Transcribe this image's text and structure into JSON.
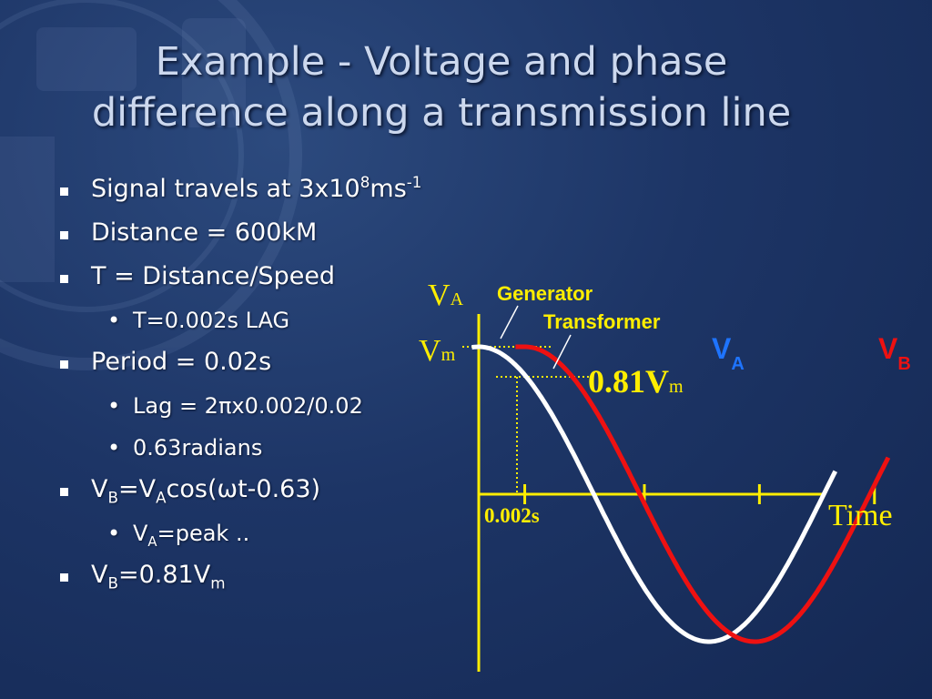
{
  "title": {
    "line1": "Example - Voltage  and  phase",
    "line2": "difference along a transmission line"
  },
  "bullets": {
    "signal": {
      "main": "Signal travels at 3x10",
      "sup1": "8",
      "mid": "ms",
      "sup2": "-1"
    },
    "distance": "Distance = 600kM",
    "t_formula": "T = Distance/Speed",
    "t_value": "T=0.002s LAG",
    "period": "Period = 0.02s",
    "lag": "Lag = 2πx0.002/0.02",
    "radians": "0.63radians",
    "vb_eq": {
      "v1": "V",
      "sub1": "B",
      "eq": "=V",
      "sub2": "A",
      "rest": "cos(ωt-0.63)"
    },
    "va_peak": {
      "v": "V",
      "sub": "A",
      "rest": "=peak .."
    },
    "vb_value": {
      "v": "V",
      "sub": "B",
      "eq": "=0.81V",
      "sub2": "m"
    }
  },
  "diagram": {
    "y_axis_label": {
      "v": "V",
      "sub": "A"
    },
    "vm_label": {
      "v": "V",
      "sub": "m"
    },
    "generator_label": "Generator",
    "transformer_label": "Transformer",
    "level_label": {
      "value": "0.81V",
      "sub": "m"
    },
    "delay_label": "0.002s",
    "time_label": "Time",
    "va_legend": {
      "v": "V",
      "sub": "A"
    },
    "vb_legend": {
      "v": "V",
      "sub": "B"
    },
    "colors": {
      "va": "#ffffff",
      "vb": "#ee1111",
      "axis": "#ffee00",
      "label_yellow": "#ffee00",
      "legend_va": "#1e74ff",
      "legend_vb": "#ee1111"
    },
    "waves": {
      "period_s": 0.02,
      "lag_s": 0.002,
      "phase_lag_rad": 0.63,
      "va_peak": 1.0,
      "vb_at_t0": 0.81
    },
    "time_ticks_s": [
      0.002,
      0.0072,
      0.0122,
      0.0172
    ]
  }
}
